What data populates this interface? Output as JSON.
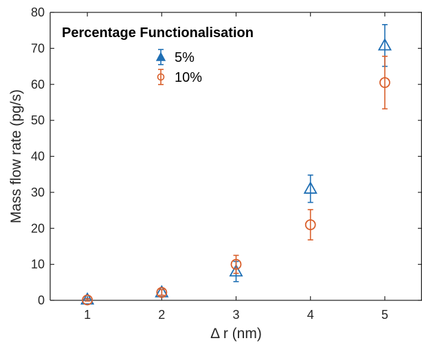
{
  "chart_data": {
    "type": "scatter",
    "xlabel": "Δ r (nm)",
    "ylabel": "Mass flow rate (pg/s)",
    "xlim": [
      0.5,
      5.5
    ],
    "ylim": [
      0,
      80
    ],
    "xticks": [
      "1",
      "2",
      "3",
      "4",
      "5"
    ],
    "yticks": [
      "0",
      "10",
      "20",
      "30",
      "40",
      "50",
      "60",
      "70",
      "80"
    ],
    "grid": false,
    "legend": {
      "title": "Percentage Functionalisation",
      "placement": "top-left"
    },
    "series": [
      {
        "name": "5%",
        "color": "#1f6fb4",
        "marker": "triangle",
        "x": [
          1,
          2,
          3,
          4,
          5
        ],
        "y": [
          0.2,
          2.2,
          8.0,
          31.0,
          70.8
        ],
        "err": [
          0.3,
          0.8,
          2.8,
          3.8,
          5.8
        ]
      },
      {
        "name": "10%",
        "color": "#d95f2b",
        "marker": "circle",
        "x": [
          1,
          2,
          3,
          4,
          5
        ],
        "y": [
          0.1,
          2.2,
          10.0,
          21.0,
          60.5
        ],
        "err": [
          0.3,
          0.8,
          2.5,
          4.2,
          7.3
        ]
      }
    ]
  }
}
